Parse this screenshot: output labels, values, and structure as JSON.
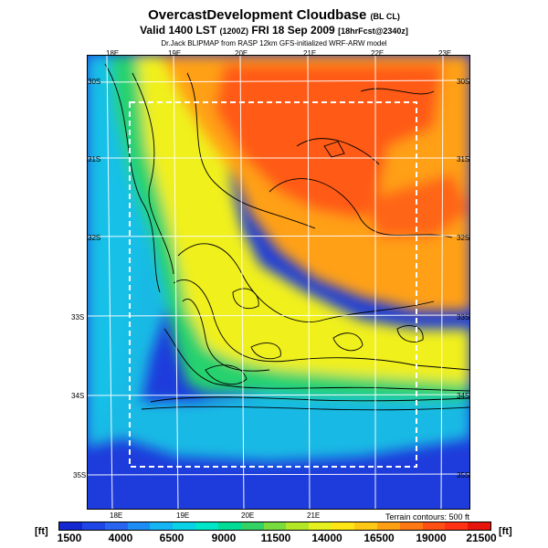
{
  "title": {
    "main": "OvercastDevelopment Cloudbase",
    "main_suffix": "(BL CL)",
    "valid": "Valid 1400 LST",
    "valid_small": "(1200Z)",
    "valid_date": "FRI 18 Sep 2009",
    "forecast": "[18hrFcst@2340z]",
    "credit": "Dr.Jack BLIPMAP from RASP 12km GFS-initialized WRF-ARW model"
  },
  "axes": {
    "lon_top": [
      "18E",
      "19E",
      "20E",
      "21E",
      "22E",
      "23E"
    ],
    "lon_bottom": [
      "18E",
      "19E",
      "20E",
      "21E"
    ],
    "lat_left": [
      "30S",
      "31S",
      "32S",
      "33S",
      "34S",
      "35S"
    ],
    "lat_right": [
      "30S",
      "31S",
      "32S",
      "33S",
      "34S",
      "35S"
    ]
  },
  "contour_note": "Terrain contours: 500 ft",
  "colorbar": {
    "unit": "[ft]",
    "labels": [
      "1500",
      "4000",
      "6500",
      "9000",
      "11500",
      "14000",
      "16500",
      "19000",
      "21500"
    ],
    "colors": [
      "#1428d2",
      "#1e46e6",
      "#2864f0",
      "#1e8cf5",
      "#14b4f5",
      "#0ad2e6",
      "#00e6c8",
      "#00dc96",
      "#32d264",
      "#78dc3c",
      "#b4e628",
      "#e6f01e",
      "#ffe614",
      "#ffc814",
      "#ffa014",
      "#ff7814",
      "#ff5014",
      "#ff3214",
      "#e6140a"
    ]
  },
  "map": {
    "colors": {
      "ocean_deep": "#1e3cdc",
      "ocean": "#2878ee",
      "coast": "#14c8e6",
      "green": "#28d26e",
      "yellow": "#f0f01e",
      "orange": "#ffa014",
      "red": "#ff5a14"
    }
  }
}
